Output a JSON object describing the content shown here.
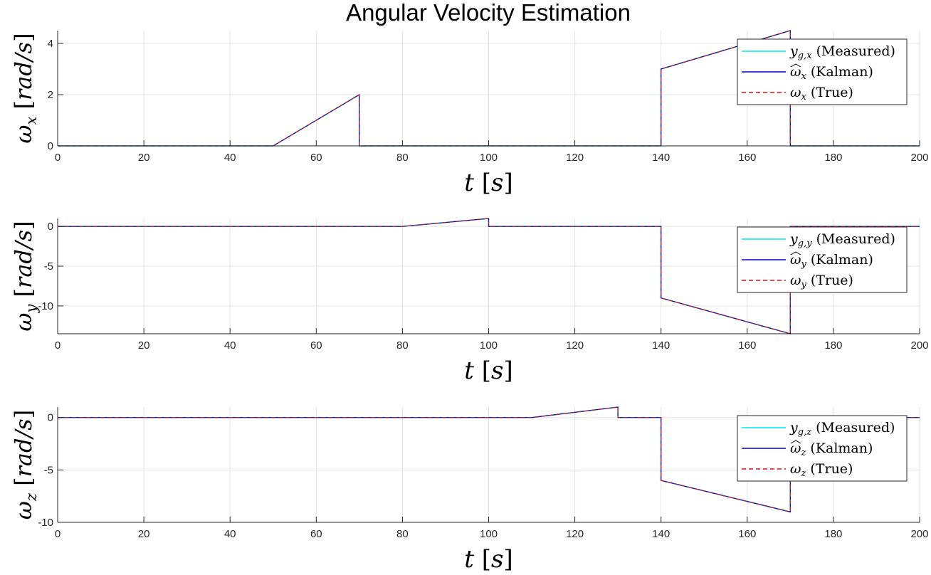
{
  "figure": {
    "title": "Angular Velocity Estimation"
  },
  "chart_data": [
    {
      "type": "line",
      "xlabel": "t [s]",
      "ylabel": "ω_x [rad/s]",
      "xlim": [
        0,
        200
      ],
      "ylim": [
        0,
        4.5
      ],
      "xticks": [
        0,
        20,
        40,
        60,
        80,
        100,
        120,
        140,
        160,
        180,
        200
      ],
      "yticks": [
        0,
        2,
        4
      ],
      "grid": true,
      "legend_position": "top-right",
      "series": [
        {
          "name": "y_g,x (Measured)",
          "color": "#00e5e5",
          "style": "solid",
          "x": [
            0,
            50,
            70,
            70,
            140,
            140,
            170,
            170,
            200
          ],
          "y": [
            0,
            0,
            2,
            0,
            0,
            3,
            4.5,
            0,
            0
          ]
        },
        {
          "name": "ω̂_x (Kalman)",
          "color": "#0000d0",
          "style": "solid",
          "x": [
            0,
            50,
            70,
            70,
            140,
            140,
            170,
            170,
            200
          ],
          "y": [
            0,
            0,
            2,
            0,
            0,
            3,
            4.5,
            0,
            0
          ]
        },
        {
          "name": "ω_x (True)",
          "color": "#e01010",
          "style": "dashed",
          "x": [
            0,
            50,
            70,
            70,
            140,
            140,
            170,
            170,
            200
          ],
          "y": [
            0,
            0,
            2,
            0,
            0,
            3,
            4.5,
            0,
            0
          ]
        }
      ]
    },
    {
      "type": "line",
      "xlabel": "t [s]",
      "ylabel": "ω_y [rad/s]",
      "xlim": [
        0,
        200
      ],
      "ylim": [
        -13.5,
        1
      ],
      "xticks": [
        0,
        20,
        40,
        60,
        80,
        100,
        120,
        140,
        160,
        180,
        200
      ],
      "yticks": [
        0,
        -5,
        -10
      ],
      "grid": true,
      "legend_position": "right",
      "series": [
        {
          "name": "y_g,y (Measured)",
          "color": "#00e5e5",
          "style": "solid",
          "x": [
            0,
            80,
            100,
            100,
            140,
            140,
            170,
            170,
            200
          ],
          "y": [
            0,
            0,
            1,
            0,
            0,
            -9,
            -13.5,
            0,
            0
          ]
        },
        {
          "name": "ω̂_y (Kalman)",
          "color": "#0000d0",
          "style": "solid",
          "x": [
            0,
            80,
            100,
            100,
            140,
            140,
            170,
            170,
            200
          ],
          "y": [
            0,
            0,
            1,
            0,
            0,
            -9,
            -13.5,
            0,
            0
          ]
        },
        {
          "name": "ω_y (True)",
          "color": "#e01010",
          "style": "dashed",
          "x": [
            0,
            80,
            100,
            100,
            140,
            140,
            170,
            170,
            200
          ],
          "y": [
            0,
            0,
            1,
            0,
            0,
            -9,
            -13.5,
            0,
            0
          ]
        }
      ]
    },
    {
      "type": "line",
      "xlabel": "t [s]",
      "ylabel": "ω_z [rad/s]",
      "xlim": [
        0,
        200
      ],
      "ylim": [
        -10,
        1
      ],
      "xticks": [
        0,
        20,
        40,
        60,
        80,
        100,
        120,
        140,
        160,
        180,
        200
      ],
      "yticks": [
        0,
        -5,
        -10
      ],
      "grid": true,
      "legend_position": "right",
      "series": [
        {
          "name": "y_g,z (Measured)",
          "color": "#00e5e5",
          "style": "solid",
          "x": [
            0,
            110,
            130,
            130,
            140,
            140,
            170,
            170,
            200
          ],
          "y": [
            0,
            0,
            1,
            0,
            0,
            -6,
            -9,
            0,
            0
          ]
        },
        {
          "name": "ω̂_z (Kalman)",
          "color": "#0000d0",
          "style": "solid",
          "x": [
            0,
            110,
            130,
            130,
            140,
            140,
            170,
            170,
            200
          ],
          "y": [
            0,
            0,
            1,
            0,
            0,
            -6,
            -9,
            0,
            0
          ]
        },
        {
          "name": "ω_z (True)",
          "color": "#e01010",
          "style": "dashed",
          "x": [
            0,
            110,
            130,
            130,
            140,
            140,
            170,
            170,
            200
          ],
          "y": [
            0,
            0,
            1,
            0,
            0,
            -6,
            -9,
            0,
            0
          ]
        }
      ]
    }
  ]
}
